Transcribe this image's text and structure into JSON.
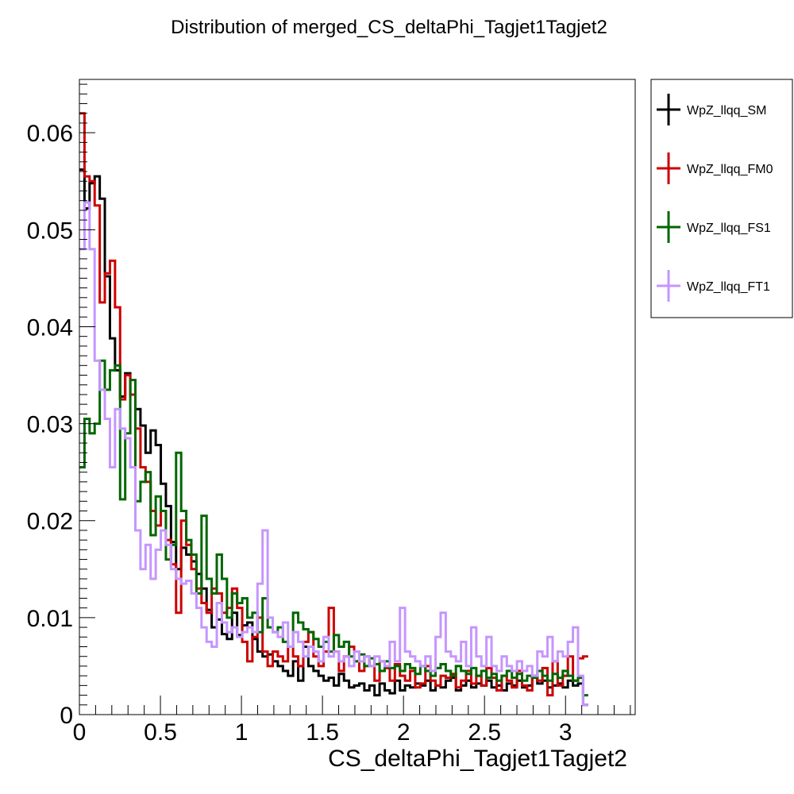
{
  "chart_data": {
    "type": "line",
    "title": "Distribution of merged_CS_deltaPhi_Tagjet1Tagjet2",
    "xlabel": "CS_deltaPhi_Tagjet1Tagjet2",
    "ylabel": "",
    "xlim": [
      0,
      3.43
    ],
    "ylim": [
      0,
      0.0655
    ],
    "bin_width": 0.0314,
    "x_ticks": [
      0,
      0.5,
      1,
      1.5,
      2,
      2.5,
      3
    ],
    "x_tick_labels": [
      "0",
      "0.5",
      "1",
      "1.5",
      "2",
      "2.5",
      "3"
    ],
    "y_ticks": [
      0,
      0.01,
      0.02,
      0.03,
      0.04,
      0.05,
      0.06
    ],
    "y_tick_labels": [
      "0",
      "0.01",
      "0.02",
      "0.03",
      "0.04",
      "0.05",
      "0.06"
    ],
    "grid": false,
    "legend_position": "right",
    "series": [
      {
        "name": "WpZ_llqq_SM",
        "color": "#000000",
        "values": [
          0.0562,
          0.0522,
          0.0548,
          0.0555,
          0.0532,
          0.0452,
          0.0388,
          0.0355,
          0.0328,
          0.0352,
          0.033,
          0.0315,
          0.0298,
          0.027,
          0.0293,
          0.0278,
          0.0238,
          0.0215,
          0.0178,
          0.015,
          0.0172,
          0.0165,
          0.0158,
          0.0145,
          0.013,
          0.0108,
          0.009,
          0.0098,
          0.0083,
          0.0078,
          0.0105,
          0.0082,
          0.0092,
          0.0095,
          0.0078,
          0.0065,
          0.006,
          0.0062,
          0.0055,
          0.005,
          0.0045,
          0.004,
          0.0055,
          0.0035,
          0.007,
          0.005,
          0.0045,
          0.004,
          0.0035,
          0.0038,
          0.003,
          0.0042,
          0.0035,
          0.0028,
          0.003,
          0.0032,
          0.0025,
          0.003,
          0.002,
          0.0032,
          0.0025,
          0.0022,
          0.0035,
          0.0025,
          0.003,
          0.0028,
          0.0032,
          0.003,
          0.0035,
          0.0025,
          0.003,
          0.0028,
          0.0035,
          0.0038,
          0.0025,
          0.003,
          0.0035,
          0.0028,
          0.0032,
          0.003,
          0.0035,
          0.0028,
          0.003,
          0.0025,
          0.0032,
          0.003,
          0.0035,
          0.0028,
          0.003,
          0.004,
          0.0032,
          0.0035,
          0.0028,
          0.003,
          0.0032,
          0.0028,
          0.0035,
          0.003,
          0.0032,
          0.001
        ]
      },
      {
        "name": "WpZ_llqq_FM0",
        "color": "#cc0000",
        "values": [
          0.062,
          0.0555,
          0.055,
          0.0525,
          0.0425,
          0.0455,
          0.0468,
          0.042,
          0.0325,
          0.035,
          0.033,
          0.0295,
          0.0255,
          0.024,
          0.021,
          0.0195,
          0.021,
          0.018,
          0.0155,
          0.0105,
          0.02,
          0.0175,
          0.015,
          0.013,
          0.0115,
          0.0105,
          0.013,
          0.0125,
          0.0105,
          0.011,
          0.013,
          0.011,
          0.0075,
          0.0055,
          0.008,
          0.01,
          0.0065,
          0.005,
          0.0065,
          0.006,
          0.0055,
          0.007,
          0.006,
          0.005,
          0.0075,
          0.0085,
          0.006,
          0.005,
          0.0065,
          0.011,
          0.0065,
          0.0045,
          0.006,
          0.007,
          0.0055,
          0.0045,
          0.006,
          0.005,
          0.0035,
          0.0055,
          0.0048,
          0.0035,
          0.0052,
          0.004,
          0.0035,
          0.0045,
          0.0028,
          0.0032,
          0.005,
          0.0035,
          0.003,
          0.004,
          0.0038,
          0.0042,
          0.0028,
          0.0035,
          0.0045,
          0.0032,
          0.004,
          0.003,
          0.0048,
          0.0038,
          0.0025,
          0.004,
          0.0035,
          0.0028,
          0.0045,
          0.003,
          0.0025,
          0.004,
          0.0035,
          0.0048,
          0.002,
          0.0055,
          0.003,
          0.004,
          0.006,
          0.0035,
          0.0058,
          0.006
        ]
      },
      {
        "name": "WpZ_llqq_FS1",
        "color": "#006600",
        "values": [
          0.0255,
          0.0305,
          0.029,
          0.03,
          0.0365,
          0.0335,
          0.0355,
          0.036,
          0.0222,
          0.029,
          0.0345,
          0.022,
          0.024,
          0.025,
          0.0185,
          0.0225,
          0.021,
          0.016,
          0.0175,
          0.027,
          0.021,
          0.018,
          0.0165,
          0.0125,
          0.0205,
          0.014,
          0.0125,
          0.0165,
          0.014,
          0.01,
          0.0125,
          0.0115,
          0.012,
          0.01,
          0.0105,
          0.0085,
          0.012,
          0.009,
          0.0085,
          0.009,
          0.0075,
          0.007,
          0.0105,
          0.0095,
          0.0088,
          0.0085,
          0.0078,
          0.007,
          0.0075,
          0.0065,
          0.0082,
          0.007,
          0.0075,
          0.006,
          0.0055,
          0.0062,
          0.005,
          0.0058,
          0.0052,
          0.0045,
          0.0055,
          0.0048,
          0.005,
          0.0045,
          0.0052,
          0.0048,
          0.0042,
          0.005,
          0.0045,
          0.004,
          0.0048,
          0.0052,
          0.0045,
          0.004,
          0.005,
          0.0045,
          0.0042,
          0.0048,
          0.004,
          0.0045,
          0.0038,
          0.0042,
          0.0035,
          0.004,
          0.0045,
          0.0038,
          0.0042,
          0.0035,
          0.004,
          0.0038,
          0.0045,
          0.004,
          0.0035,
          0.0042,
          0.0038,
          0.0045,
          0.004,
          0.0035,
          0.0038,
          0.002
        ]
      },
      {
        "name": "WpZ_llqq_FT1",
        "color": "#c596ff",
        "values": [
          0.048,
          0.0528,
          0.048,
          0.0365,
          0.0335,
          0.0305,
          0.0255,
          0.0315,
          0.0295,
          0.0285,
          0.0255,
          0.019,
          0.015,
          0.0175,
          0.014,
          0.017,
          0.019,
          0.0175,
          0.015,
          0.014,
          0.0135,
          0.0138,
          0.0125,
          0.011,
          0.009,
          0.0075,
          0.007,
          0.0115,
          0.0095,
          0.0085,
          0.009,
          0.008,
          0.0085,
          0.009,
          0.0085,
          0.0135,
          0.019,
          0.01,
          0.0085,
          0.008,
          0.0095,
          0.007,
          0.0085,
          0.0075,
          0.006,
          0.007,
          0.0065,
          0.0055,
          0.008,
          0.006,
          0.0065,
          0.0055,
          0.006,
          0.005,
          0.0065,
          0.0055,
          0.006,
          0.005,
          0.006,
          0.0055,
          0.005,
          0.0075,
          0.0055,
          0.011,
          0.0065,
          0.006,
          0.0055,
          0.005,
          0.006,
          0.0045,
          0.008,
          0.0105,
          0.0065,
          0.006,
          0.0055,
          0.0075,
          0.005,
          0.009,
          0.006,
          0.005,
          0.008,
          0.005,
          0.0045,
          0.006,
          0.005,
          0.0045,
          0.0055,
          0.0045,
          0.005,
          0.004,
          0.0065,
          0.006,
          0.008,
          0.0055,
          0.0065,
          0.006,
          0.0075,
          0.009,
          0.004,
          0.001
        ]
      }
    ]
  }
}
